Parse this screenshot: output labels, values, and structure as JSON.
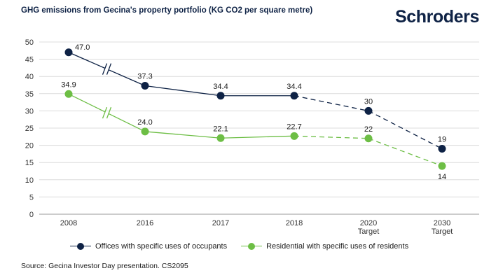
{
  "header": {
    "title": "GHG emissions from Gecina's property portfolio (KG CO2 per square metre)",
    "logo": "Schroders"
  },
  "footer": {
    "source": "Source: Gecina Investor Day presentation. CS2095"
  },
  "chart_data": {
    "type": "line",
    "title": "GHG emissions from Gecina's property portfolio (KG CO2 per square metre)",
    "categories": [
      [
        "2008"
      ],
      [
        "2016"
      ],
      [
        "2017"
      ],
      [
        "2018"
      ],
      [
        "2020",
        "Target"
      ],
      [
        "2030",
        "Target"
      ]
    ],
    "ylim": [
      0,
      50
    ],
    "yticks": [
      0,
      5,
      10,
      15,
      20,
      25,
      30,
      35,
      40,
      45,
      50
    ],
    "grid": true,
    "axis_break_after_index": 0,
    "dashed_from_index": 3,
    "series": [
      {
        "name": "Offices with specific uses of occupants",
        "color": "#0e2245",
        "values": [
          47.0,
          37.3,
          34.4,
          34.4,
          30,
          19
        ],
        "labels": [
          "47.0",
          "37.3",
          "34.4",
          "34.4",
          "30",
          "19"
        ],
        "label_pos": [
          "right",
          "above",
          "above",
          "above",
          "above",
          "above"
        ]
      },
      {
        "name": "Residential with specific uses of residents",
        "color": "#6dbe45",
        "values": [
          34.9,
          24.0,
          22.1,
          22.7,
          22,
          14
        ],
        "labels": [
          "34.9",
          "24.0",
          "22.1",
          "22.7",
          "22",
          "14"
        ],
        "label_pos": [
          "above",
          "above",
          "above",
          "above",
          "above",
          "below"
        ]
      }
    ]
  }
}
